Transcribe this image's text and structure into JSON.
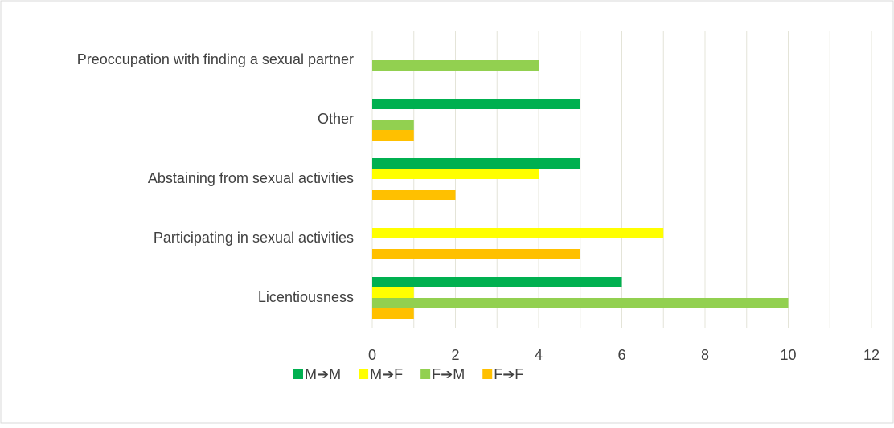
{
  "chart_data": {
    "type": "hbar",
    "categories": [
      "Preoccupation with finding a sexual partner",
      "Other",
      "Abstaining from sexual activities",
      "Participating in sexual activities",
      "Licentiousness"
    ],
    "series": [
      {
        "name": "M➔M",
        "color": "#00b050",
        "values": [
          0,
          5,
          5,
          0,
          6
        ]
      },
      {
        "name": "M➔F",
        "color": "#ffff00",
        "values": [
          0,
          0,
          4,
          7,
          1
        ]
      },
      {
        "name": "F➔M",
        "color": "#92d050",
        "values": [
          4,
          1,
          0,
          0,
          10
        ]
      },
      {
        "name": "F➔F",
        "color": "#ffc000",
        "values": [
          0,
          1,
          2,
          5,
          1
        ]
      }
    ],
    "xlim": [
      0,
      12
    ],
    "xticks": [
      0,
      2,
      4,
      6,
      8,
      10,
      12
    ],
    "minor_xticks": [
      1,
      3,
      5,
      7,
      9,
      11
    ],
    "grid": true,
    "legend": "bottom"
  }
}
